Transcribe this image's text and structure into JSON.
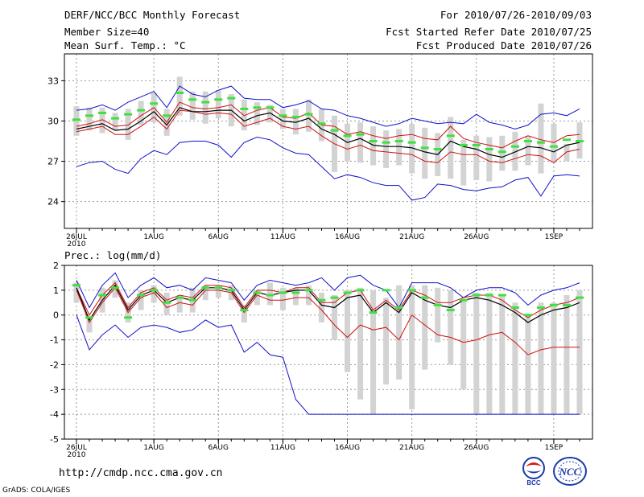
{
  "header": {
    "title": "DERF/NCC/BCC Monthly Forecast",
    "member_size": "Member Size=40",
    "variable_temp": "Mean Surf. Temp.: °C",
    "period": "For 2010/07/26-2010/09/03",
    "started": "Fcst Started Refer Date 2010/07/25",
    "produced": "Fcst Produced Date 2010/07/26"
  },
  "footer": {
    "url": "http://cmdp.ncc.cma.gov.cn",
    "grads": "GrADS: COLA/IGES",
    "logo_left_text": "BCC",
    "logo_right_text": "NCC"
  },
  "colors": {
    "max_min_line": "#1010c8",
    "percentile_line": "#d01010",
    "median_line": "#000000",
    "box": "#d3d3d3",
    "mean_marker": "#40e040"
  },
  "chart_data": [
    {
      "type": "box",
      "title": "Mean Surf. Temp.: °C",
      "x_start_day": 0,
      "x_days": 40,
      "xticks": [
        {
          "day": 0,
          "label": "26JUL",
          "sublabel": "2010"
        },
        {
          "day": 6,
          "label": "1AUG"
        },
        {
          "day": 11,
          "label": "6AUG"
        },
        {
          "day": 16,
          "label": "11AUG"
        },
        {
          "day": 21,
          "label": "16AUG"
        },
        {
          "day": 26,
          "label": "21AUG"
        },
        {
          "day": 31,
          "label": "26AUG"
        },
        {
          "day": 37,
          "label": "1SEP"
        }
      ],
      "ylim": [
        22,
        35
      ],
      "yticks": [
        24,
        27,
        30,
        33
      ],
      "grid": true,
      "series": {
        "max": [
          30.8,
          30.9,
          31.2,
          30.8,
          31.4,
          31.8,
          32.2,
          31.0,
          32.6,
          32.0,
          31.8,
          32.3,
          32.6,
          31.7,
          31.6,
          31.6,
          31.0,
          31.2,
          31.5,
          30.9,
          30.8,
          30.4,
          30.2,
          29.9,
          29.6,
          29.8,
          30.2,
          30.0,
          29.8,
          29.9,
          29.8,
          30.5,
          29.9,
          29.7,
          29.4,
          29.7,
          30.5,
          30.6,
          30.4,
          30.9
        ],
        "p_high": [
          29.6,
          29.8,
          30.1,
          29.6,
          29.7,
          30.4,
          31.0,
          29.9,
          31.4,
          31.0,
          30.9,
          31.0,
          31.2,
          30.4,
          30.8,
          31.0,
          30.3,
          30.2,
          30.6,
          29.7,
          29.6,
          29.0,
          29.2,
          28.9,
          28.7,
          28.9,
          29.0,
          28.7,
          28.6,
          29.6,
          28.7,
          28.4,
          28.2,
          28.0,
          28.5,
          28.9,
          28.6,
          28.4,
          28.9,
          29.0
        ],
        "median": [
          29.4,
          29.6,
          29.8,
          29.3,
          29.4,
          30.0,
          30.7,
          29.7,
          31.0,
          30.7,
          30.7,
          30.8,
          30.8,
          30.0,
          30.4,
          30.6,
          30.0,
          29.9,
          30.2,
          29.4,
          29.0,
          28.4,
          28.7,
          28.2,
          28.1,
          28.1,
          28.0,
          27.7,
          27.5,
          28.5,
          28.1,
          27.9,
          27.5,
          27.3,
          27.7,
          28.1,
          28.0,
          27.7,
          28.2,
          28.4
        ],
        "p_low": [
          29.2,
          29.4,
          29.6,
          29.0,
          29.0,
          29.6,
          30.3,
          29.4,
          30.8,
          30.7,
          30.5,
          30.6,
          30.5,
          29.6,
          29.9,
          30.2,
          29.6,
          29.4,
          29.6,
          28.9,
          28.3,
          27.9,
          28.2,
          27.8,
          27.7,
          27.6,
          27.5,
          27.0,
          26.9,
          27.7,
          27.5,
          27.5,
          27.0,
          26.9,
          27.2,
          27.5,
          27.4,
          26.9,
          27.7,
          27.9
        ],
        "min": [
          26.6,
          26.9,
          27.0,
          26.4,
          26.1,
          27.2,
          27.8,
          27.5,
          28.4,
          28.5,
          28.5,
          28.2,
          27.3,
          28.4,
          28.8,
          28.6,
          28.0,
          27.6,
          27.5,
          26.6,
          25.7,
          26.0,
          25.8,
          25.4,
          25.2,
          25.2,
          24.1,
          24.3,
          25.3,
          25.2,
          24.9,
          24.8,
          25.0,
          25.1,
          25.6,
          25.8,
          24.4,
          25.9,
          26.0,
          25.9
        ],
        "box_top": [
          31.1,
          31.0,
          31.0,
          30.6,
          30.9,
          31.5,
          32.1,
          30.9,
          33.3,
          32.2,
          32.2,
          32.3,
          32.0,
          31.6,
          31.4,
          31.2,
          30.9,
          30.9,
          31.6,
          30.9,
          30.4,
          29.8,
          29.9,
          29.6,
          29.3,
          29.4,
          29.8,
          29.5,
          29.1,
          30.3,
          28.6,
          28.9,
          28.8,
          28.9,
          29.2,
          28.9,
          31.3,
          29.8,
          28.3,
          29.9
        ],
        "box_bottom": [
          28.9,
          29.3,
          29.1,
          29.3,
          28.6,
          29.7,
          29.9,
          28.9,
          30.4,
          30.1,
          29.8,
          30.2,
          29.6,
          29.3,
          29.7,
          29.9,
          29.4,
          29.0,
          29.2,
          28.5,
          26.2,
          27.0,
          26.9,
          26.7,
          26.5,
          26.7,
          26.1,
          25.7,
          25.9,
          25.7,
          25.2,
          25.6,
          25.5,
          26.3,
          26.3,
          26.7,
          26.1,
          26.9,
          27.0,
          27.2
        ],
        "mean": [
          30.1,
          30.4,
          30.6,
          30.2,
          30.5,
          30.8,
          31.3,
          30.4,
          32.1,
          31.6,
          31.4,
          31.6,
          31.7,
          30.9,
          31.0,
          31.0,
          30.4,
          30.3,
          30.5,
          29.8,
          29.3,
          28.9,
          29.0,
          28.5,
          28.4,
          28.5,
          28.4,
          28.0,
          27.9,
          28.9,
          28.2,
          28.2,
          27.9,
          27.7,
          28.1,
          28.5,
          28.4,
          28.1,
          28.6,
          28.5
        ]
      }
    },
    {
      "type": "box",
      "title": "Prec.: log(mm/d)",
      "x_start_day": 0,
      "x_days": 40,
      "xticks": [
        {
          "day": 0,
          "label": "26JUL",
          "sublabel": "2010"
        },
        {
          "day": 6,
          "label": "1AUG"
        },
        {
          "day": 11,
          "label": "6AUG"
        },
        {
          "day": 16,
          "label": "11AUG"
        },
        {
          "day": 21,
          "label": "16AUG"
        },
        {
          "day": 26,
          "label": "21AUG"
        },
        {
          "day": 31,
          "label": "26AUG"
        },
        {
          "day": 37,
          "label": "1SEP"
        }
      ],
      "ylim": [
        -5,
        2
      ],
      "yticks": [
        -5,
        -4,
        -3,
        -2,
        -1,
        0,
        1,
        2
      ],
      "grid": true,
      "series": {
        "max": [
          1.4,
          0.3,
          1.2,
          1.7,
          0.7,
          1.2,
          1.5,
          1.1,
          1.2,
          1.0,
          1.5,
          1.4,
          1.3,
          0.6,
          1.2,
          1.4,
          1.3,
          1.2,
          1.3,
          1.5,
          1.0,
          1.5,
          1.6,
          1.2,
          1.0,
          0.3,
          1.3,
          1.3,
          1.3,
          1.1,
          0.7,
          1.0,
          1.1,
          1.1,
          0.9,
          0.4,
          0.8,
          1.0,
          1.1,
          1.3
        ],
        "p_high": [
          1.1,
          0.0,
          0.8,
          1.3,
          0.3,
          0.9,
          1.1,
          0.6,
          0.8,
          0.7,
          1.2,
          1.2,
          1.1,
          0.3,
          1.0,
          1.0,
          0.9,
          1.1,
          1.1,
          0.5,
          0.5,
          0.9,
          1.0,
          0.2,
          0.6,
          0.2,
          1.0,
          0.8,
          0.5,
          0.5,
          0.7,
          0.8,
          0.8,
          0.6,
          0.2,
          -0.1,
          0.2,
          0.4,
          0.5,
          0.7
        ],
        "median": [
          1.1,
          -0.2,
          0.6,
          1.2,
          0.2,
          0.8,
          1.0,
          0.5,
          0.7,
          0.6,
          1.1,
          1.1,
          1.0,
          0.2,
          0.9,
          0.8,
          0.9,
          1.0,
          1.0,
          0.4,
          0.3,
          0.7,
          0.8,
          0.1,
          0.5,
          0.1,
          0.9,
          0.6,
          0.4,
          0.3,
          0.6,
          0.7,
          0.6,
          0.4,
          0.1,
          -0.3,
          0.0,
          0.2,
          0.3,
          0.5
        ],
        "p_low": [
          1.0,
          -0.3,
          0.5,
          1.1,
          0.1,
          0.7,
          0.9,
          0.3,
          0.5,
          0.4,
          1.0,
          1.0,
          0.9,
          0.1,
          0.8,
          0.6,
          0.6,
          0.7,
          0.7,
          0.2,
          -0.4,
          -0.9,
          -0.4,
          -0.6,
          -0.5,
          -1.0,
          0.0,
          -0.4,
          -0.8,
          -0.9,
          -1.1,
          -1.0,
          -0.8,
          -0.7,
          -1.1,
          -1.6,
          -1.4,
          -1.3,
          -1.3,
          -1.3
        ],
        "min": [
          0.0,
          -1.4,
          -0.8,
          -0.4,
          -0.9,
          -0.5,
          -0.4,
          -0.5,
          -0.7,
          -0.6,
          -0.2,
          -0.5,
          -0.4,
          -1.5,
          -1.1,
          -1.6,
          -1.7,
          -3.4,
          -4.0,
          -4.0,
          -4.0,
          -4.0,
          -4.0,
          -4.0,
          -4.0,
          -4.0,
          -4.0,
          -4.0,
          -4.0,
          -4.0,
          -4.0,
          -4.0,
          -4.0,
          -4.0,
          -4.0,
          -4.0,
          -4.0,
          -4.0,
          -4.0,
          -4.0
        ],
        "box_top": [
          1.3,
          -0.1,
          1.1,
          1.4,
          0.5,
          1.0,
          1.2,
          0.9,
          0.8,
          1.1,
          1.2,
          1.2,
          1.2,
          0.4,
          1.0,
          1.3,
          1.1,
          1.1,
          1.2,
          0.9,
          0.8,
          1.0,
          1.1,
          1.0,
          0.7,
          1.2,
          1.2,
          1.2,
          1.1,
          1.0,
          0.6,
          0.9,
          0.9,
          0.8,
          0.5,
          0.0,
          0.5,
          0.5,
          0.8,
          1.0
        ],
        "box_bottom": [
          0.5,
          -0.7,
          0.1,
          0.7,
          -0.3,
          0.2,
          0.5,
          0.0,
          0.1,
          0.1,
          0.6,
          0.7,
          0.6,
          -0.3,
          0.4,
          0.4,
          0.2,
          0.4,
          0.4,
          -0.3,
          -1.0,
          -2.3,
          -3.4,
          -4.0,
          -2.8,
          -2.6,
          -3.8,
          -2.2,
          -1.1,
          -2.0,
          -3.0,
          -4.0,
          -4.0,
          -4.0,
          -4.0,
          -4.0,
          -4.0,
          -4.0,
          -4.0,
          -4.0
        ],
        "mean": [
          1.2,
          -0.1,
          0.8,
          1.1,
          -0.1,
          0.8,
          1.0,
          0.5,
          0.7,
          0.6,
          1.1,
          1.1,
          1.0,
          0.2,
          0.9,
          0.8,
          0.9,
          0.9,
          1.0,
          0.6,
          0.7,
          0.9,
          1.0,
          0.1,
          1.0,
          0.3,
          1.0,
          0.7,
          0.4,
          0.2,
          0.6,
          0.8,
          0.8,
          0.8,
          0.3,
          0.0,
          0.3,
          0.4,
          0.4,
          0.7
        ]
      }
    }
  ]
}
